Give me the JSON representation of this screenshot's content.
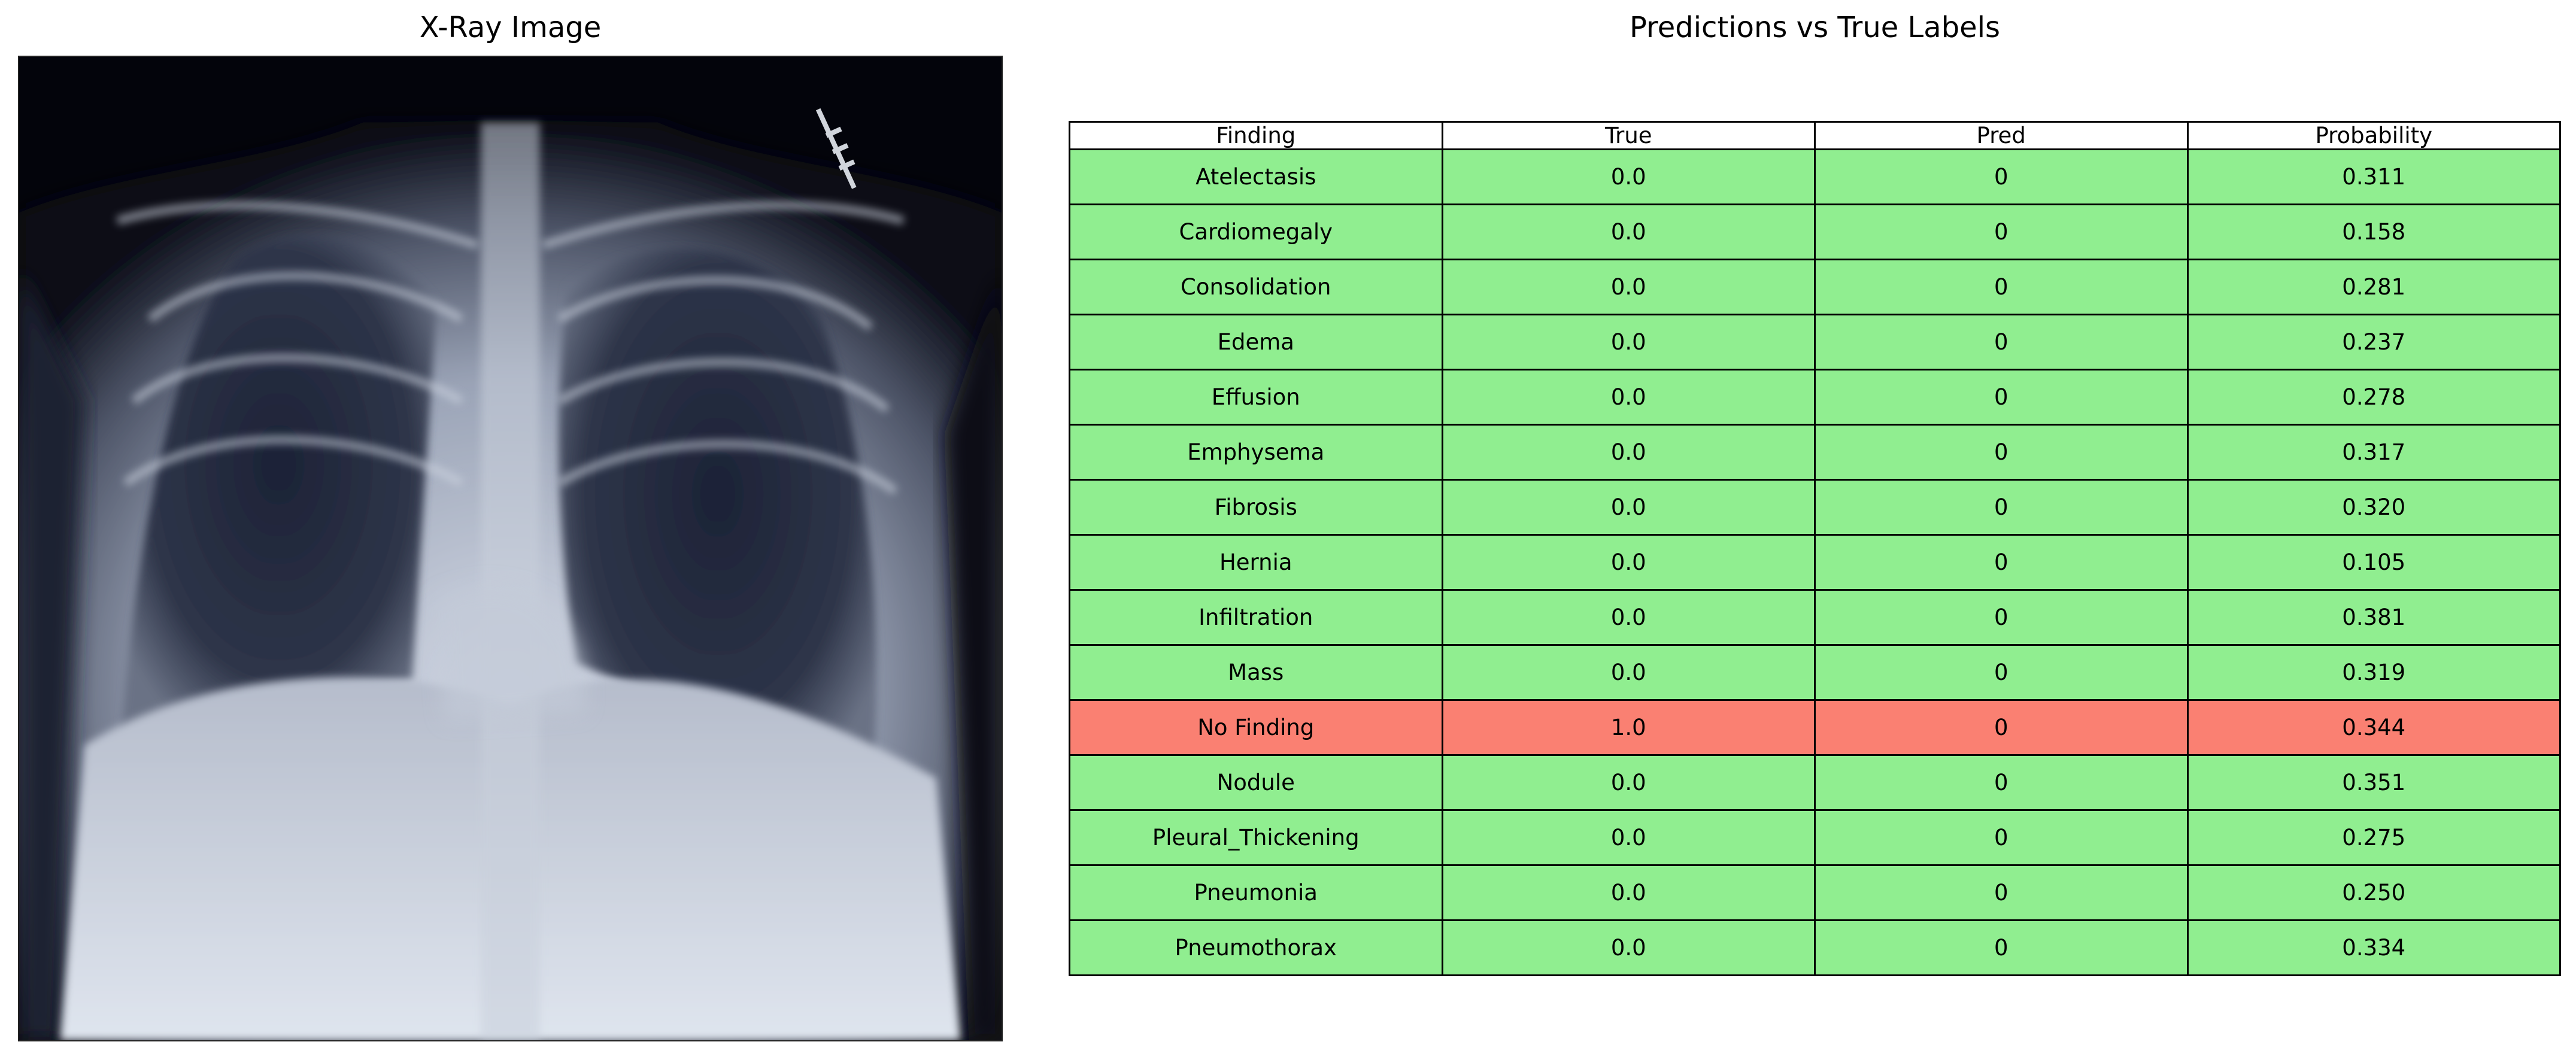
{
  "xray": {
    "title": "X-Ray Image",
    "image": "chest-x-ray"
  },
  "table_title": "Predictions vs True Labels",
  "colors": {
    "match": "#90ee90",
    "mismatch": "#fa8072",
    "header": "#ffffff"
  },
  "chart_data": {
    "type": "table",
    "title": "Predictions vs True Labels",
    "columns": [
      "Finding",
      "True",
      "Pred",
      "Probability"
    ],
    "rows": [
      [
        "Atelectasis",
        "0.0",
        "0",
        "0.311"
      ],
      [
        "Cardiomegaly",
        "0.0",
        "0",
        "0.158"
      ],
      [
        "Consolidation",
        "0.0",
        "0",
        "0.281"
      ],
      [
        "Edema",
        "0.0",
        "0",
        "0.237"
      ],
      [
        "Effusion",
        "0.0",
        "0",
        "0.278"
      ],
      [
        "Emphysema",
        "0.0",
        "0",
        "0.317"
      ],
      [
        "Fibrosis",
        "0.0",
        "0",
        "0.320"
      ],
      [
        "Hernia",
        "0.0",
        "0",
        "0.105"
      ],
      [
        "Infiltration",
        "0.0",
        "0",
        "0.381"
      ],
      [
        "Mass",
        "0.0",
        "0",
        "0.319"
      ],
      [
        "No Finding",
        "1.0",
        "0",
        "0.344"
      ],
      [
        "Nodule",
        "0.0",
        "0",
        "0.351"
      ],
      [
        "Pleural_Thickening",
        "0.0",
        "0",
        "0.275"
      ],
      [
        "Pneumonia",
        "0.0",
        "0",
        "0.250"
      ],
      [
        "Pneumothorax",
        "0.0",
        "0",
        "0.334"
      ]
    ]
  }
}
